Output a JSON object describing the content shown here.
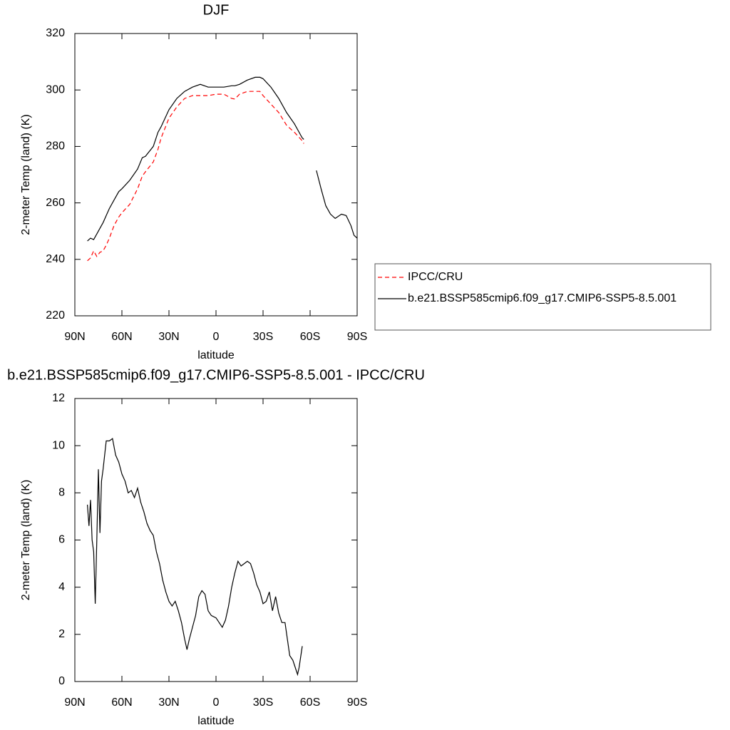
{
  "chart_data": [
    {
      "type": "line",
      "title": "DJF",
      "x_label": "latitude",
      "y_label": "2-meter Temp (land) (K)",
      "x": [
        82,
        80,
        78,
        76,
        74,
        72,
        70,
        68,
        65,
        62,
        60,
        55,
        50,
        47,
        45,
        40,
        37,
        35,
        30,
        25,
        20,
        15,
        10,
        5,
        0,
        -5,
        -10,
        -12,
        -15,
        -20,
        -25,
        -28,
        -30,
        -35,
        -40,
        -45,
        -50,
        -55,
        -56,
        -60,
        -64,
        -67,
        -70,
        -73,
        -76,
        -80,
        -83,
        -86,
        -88,
        -90
      ],
      "series": [
        {
          "name": "IPCC/CRU",
          "color": "#ff0000",
          "linestyle": "dashed",
          "values": [
            239.5,
            240.5,
            243,
            241,
            242.5,
            243,
            245,
            247.5,
            252,
            255,
            256.5,
            259.5,
            265,
            269.5,
            271,
            274.5,
            279,
            283,
            290,
            294,
            297,
            298,
            298,
            298,
            298.5,
            298.5,
            297,
            296.8,
            298.5,
            299.5,
            299.5,
            299.5,
            298,
            295,
            292,
            287.5,
            285,
            282,
            281,
            null,
            null,
            null,
            null,
            null,
            null,
            null,
            null,
            null,
            null,
            null
          ]
        },
        {
          "name": "b.e21.BSSP585cmip6.f09_g17.CMIP6-SSP5-8.5.001",
          "color": "#000000",
          "linestyle": "solid",
          "values": [
            246.5,
            247.5,
            247,
            249,
            251,
            253,
            255.5,
            258,
            261,
            264,
            265,
            268,
            272,
            276,
            276.5,
            280,
            285,
            287,
            293,
            297,
            299.5,
            301,
            302,
            301,
            301,
            301,
            301.5,
            301.5,
            302,
            303.5,
            304.5,
            304.5,
            304,
            301,
            297,
            292,
            288,
            283,
            282.5,
            null,
            271.5,
            265,
            259,
            256,
            254.5,
            256,
            255.5,
            252,
            248.5,
            247.5
          ]
        }
      ],
      "xlim": [
        90,
        -90
      ],
      "xticks": [
        {
          "value": 90,
          "label": "90N"
        },
        {
          "value": 60,
          "label": "60N"
        },
        {
          "value": 30,
          "label": "30N"
        },
        0,
        {
          "value": -30,
          "label": "30S"
        },
        {
          "value": -60,
          "label": "60S"
        },
        {
          "value": -90,
          "label": "90S"
        }
      ],
      "ylim": [
        220,
        320
      ],
      "yticks": [
        220,
        240,
        260,
        280,
        300,
        320
      ],
      "legend": "right"
    },
    {
      "type": "line",
      "title": "b.e21.BSSP585cmip6.f09_g17.CMIP6-SSP5-8.5.001 - IPCC/CRU",
      "x_label": "latitude",
      "y_label": "2-meter Temp (land) (K)",
      "x": [
        82,
        81,
        80,
        79,
        78,
        77,
        76,
        75,
        74,
        73,
        72,
        70,
        68,
        66,
        64,
        62,
        60,
        58,
        56,
        54,
        52,
        50,
        48,
        46,
        44,
        42,
        40,
        38,
        36,
        34,
        32,
        30,
        28,
        26,
        24,
        22,
        20,
        18.5,
        17,
        15,
        13,
        11,
        9,
        7,
        5,
        3,
        0,
        -2,
        -4,
        -6,
        -8,
        -10,
        -12,
        -14,
        -16,
        -18,
        -20,
        -22,
        -24,
        -26,
        -28,
        -30,
        -32,
        -34,
        -36,
        -38,
        -40,
        -42,
        -44,
        -47,
        -49,
        -51,
        -52,
        -53,
        -55
      ],
      "series": [
        {
          "color": "#000000",
          "linestyle": "solid",
          "values": [
            7.5,
            6.6,
            7.7,
            6,
            5.5,
            3.3,
            6,
            9,
            6.3,
            8.5,
            9,
            10.2,
            10.2,
            10.3,
            9.6,
            9.3,
            8.8,
            8.5,
            8,
            8.1,
            7.8,
            8.2,
            7.6,
            7.2,
            6.7,
            6.4,
            6.2,
            5.5,
            5,
            4.3,
            3.8,
            3.4,
            3.2,
            3.4,
            3,
            2.5,
            1.8,
            1.35,
            1.8,
            2.3,
            2.8,
            3.6,
            3.85,
            3.7,
            3,
            2.8,
            2.7,
            2.5,
            2.3,
            2.6,
            3.2,
            4,
            4.6,
            5.1,
            4.9,
            5,
            5.1,
            5,
            4.6,
            4.1,
            3.8,
            3.3,
            3.4,
            3.8,
            3,
            3.6,
            2.9,
            2.5,
            2.5,
            1.1,
            0.9,
            0.5,
            0.3,
            0.6,
            1.5
          ]
        }
      ],
      "xlim": [
        90,
        -90
      ],
      "xticks": [
        {
          "value": 90,
          "label": "90N"
        },
        {
          "value": 60,
          "label": "60N"
        },
        {
          "value": 30,
          "label": "30N"
        },
        0,
        {
          "value": -30,
          "label": "30S"
        },
        {
          "value": -60,
          "label": "60S"
        },
        {
          "value": -90,
          "label": "90S"
        }
      ],
      "ylim": [
        0,
        12
      ],
      "yticks": [
        0,
        2,
        4,
        6,
        8,
        10,
        12
      ]
    }
  ]
}
